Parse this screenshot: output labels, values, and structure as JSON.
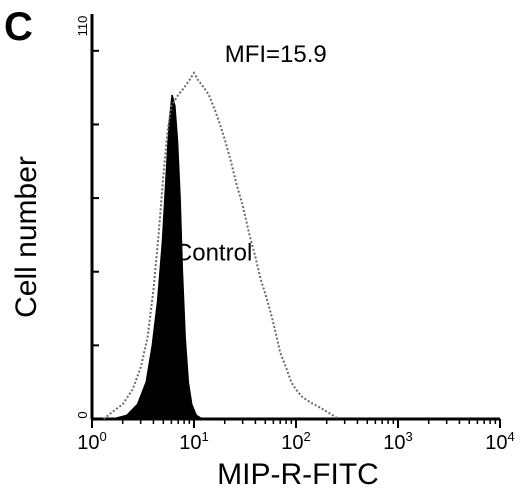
{
  "panel_label": "C",
  "chart_data": {
    "type": "area",
    "title": "",
    "xlabel": "MIP-R-FITC",
    "ylabel": "Cell number",
    "xscale": "log",
    "xlim": [
      1,
      10000
    ],
    "ylim": [
      0,
      110
    ],
    "x_ticks": [
      {
        "value": 1,
        "base": "10",
        "exp": "0"
      },
      {
        "value": 10,
        "base": "10",
        "exp": "1"
      },
      {
        "value": 100,
        "base": "10",
        "exp": "2"
      },
      {
        "value": 1000,
        "base": "10",
        "exp": "3"
      },
      {
        "value": 10000,
        "base": "10",
        "exp": "4"
      }
    ],
    "y_tick_labels": [
      {
        "value": 0,
        "label": "0"
      },
      {
        "value": 110,
        "label": "110"
      }
    ],
    "annotations": [
      {
        "text": "MFI=15.9",
        "x": 20,
        "y": 97
      },
      {
        "text": "Control",
        "x": 6.5,
        "y": 43
      }
    ],
    "series": [
      {
        "style": "filled-black",
        "x": [
          1.6,
          2.2,
          2.8,
          3.4,
          3.9,
          4.4,
          4.9,
          5.3,
          5.7,
          6.1,
          6.5,
          6.9,
          7.3,
          7.7,
          8.2,
          8.8,
          9.5,
          10.5,
          12
        ],
        "y": [
          0,
          1,
          4,
          10,
          20,
          32,
          48,
          65,
          80,
          88,
          85,
          75,
          60,
          40,
          22,
          10,
          4,
          1,
          0
        ]
      },
      {
        "style": "outline-dotted",
        "x": [
          1.3,
          1.6,
          2.0,
          2.5,
          3.0,
          3.5,
          4.0,
          4.5,
          5.0,
          5.5,
          6.0,
          7.0,
          8.0,
          9.0,
          10.0,
          11.0,
          12.5,
          14.0,
          16.0,
          18.0,
          20.0,
          23.0,
          26.0,
          30.0,
          35.0,
          40.0,
          45.0,
          50.0,
          55.0,
          60.0,
          65.0,
          70.0,
          80.0,
          90.0,
          100.0,
          115.0,
          130.0,
          150.0,
          175.0,
          200.0,
          230.0,
          260.0
        ],
        "y": [
          0,
          2,
          4,
          8,
          14,
          22,
          35,
          50,
          66,
          78,
          85,
          88,
          90,
          92,
          94,
          92,
          90,
          88,
          84,
          80,
          76,
          70,
          64,
          58,
          50,
          44,
          38,
          34,
          30,
          26,
          22,
          18,
          14,
          10,
          8,
          6,
          5,
          4,
          3,
          2,
          1,
          0
        ]
      }
    ]
  }
}
